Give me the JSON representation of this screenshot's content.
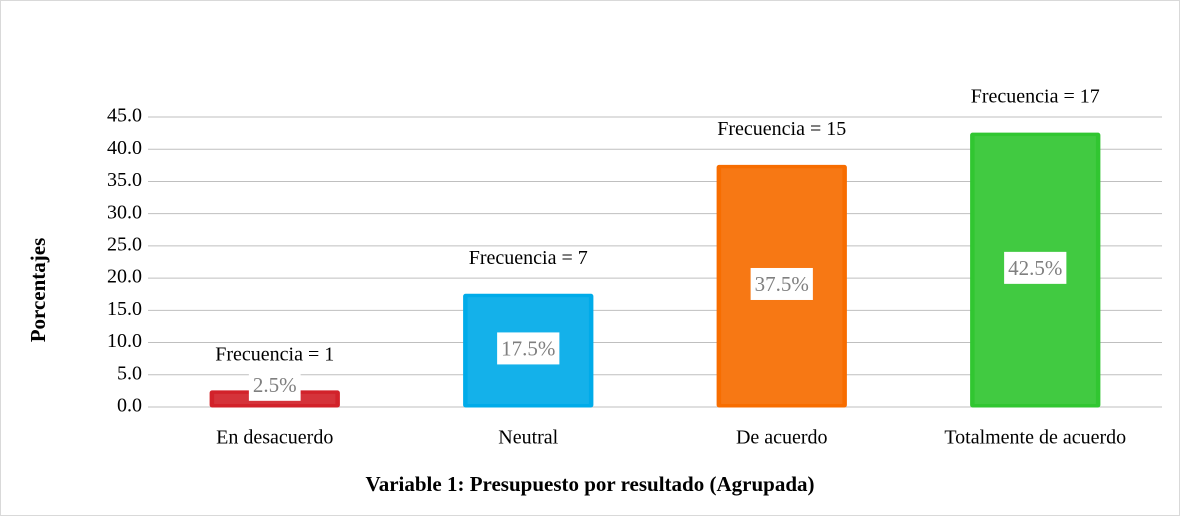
{
  "chart_data": {
    "type": "bar",
    "categories": [
      "En desacuerdo",
      "Neutral",
      "De acuerdo",
      "Totalmente de acuerdo"
    ],
    "values": [
      2.5,
      17.5,
      37.5,
      42.5
    ],
    "value_labels": [
      "2.5%",
      "17.5%",
      "37.5%",
      "42.5%"
    ],
    "annotations": [
      "Frecuencia = 1",
      "Frecuencia = 7",
      "Frecuencia = 15",
      "Frecuencia = 17"
    ],
    "colors": [
      "#d9232b",
      "#00b0f0",
      "#ff7000",
      "#33cc33"
    ],
    "xlabel": "Variable 1: Presupuesto por resultado (Agrupada)",
    "ylabel": "Porcentajes",
    "ylim": [
      0,
      45
    ],
    "yticks": [
      {
        "value": 0,
        "label": "0.0"
      },
      {
        "value": 5,
        "label": "5.0"
      },
      {
        "value": 10,
        "label": "10.0"
      },
      {
        "value": 15,
        "label": "15.0"
      },
      {
        "value": 20,
        "label": "20.0"
      },
      {
        "value": 25,
        "label": "25.0"
      },
      {
        "value": 30,
        "label": "30.0"
      },
      {
        "value": 35,
        "label": "35.0"
      },
      {
        "value": 40,
        "label": "40.0"
      },
      {
        "value": 45,
        "label": "45.0"
      }
    ],
    "grid": true
  }
}
